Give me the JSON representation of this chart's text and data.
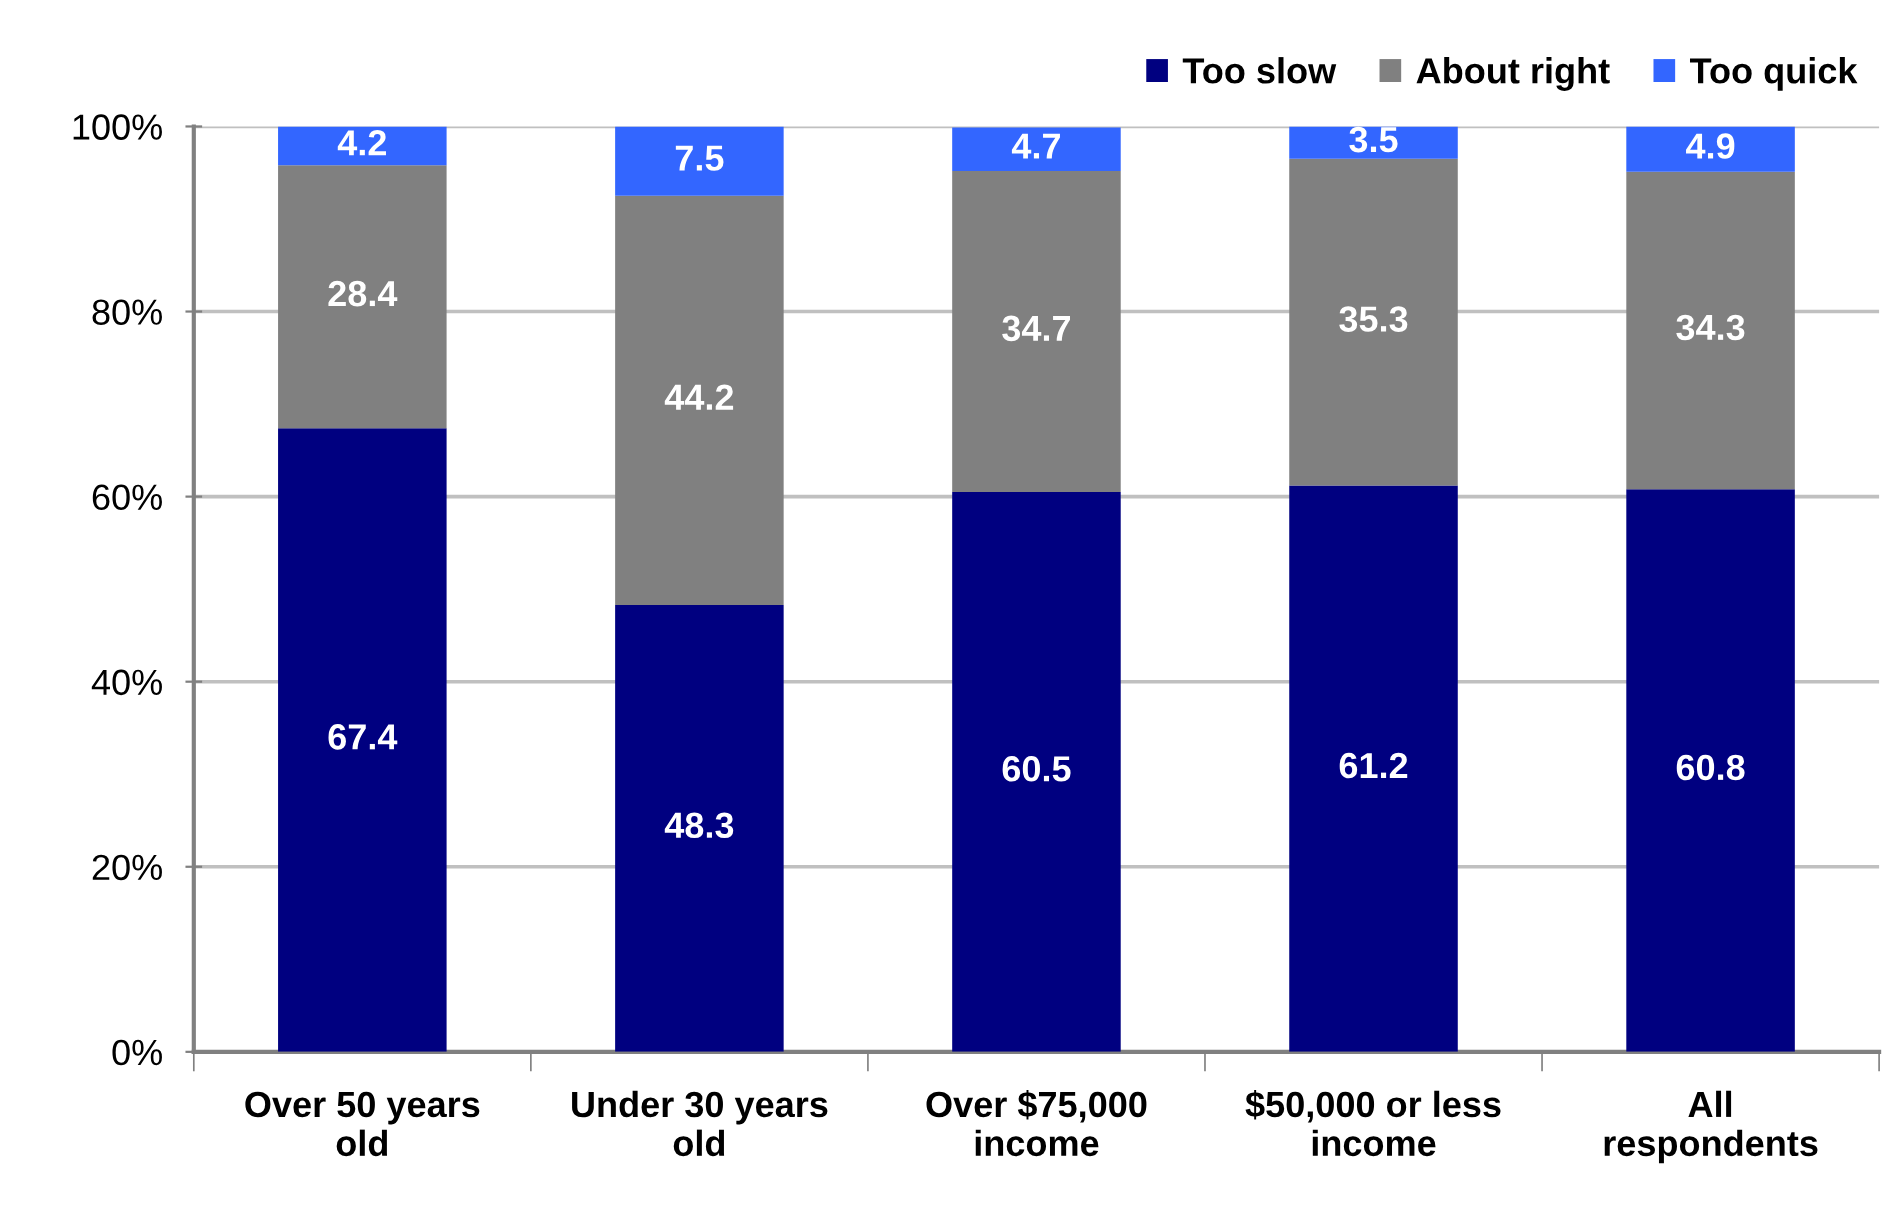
{
  "chart_data": {
    "type": "bar",
    "stacked": true,
    "categories": [
      "Over 50 years\nold",
      "Under 30 years\nold",
      "Over $75,000\nincome",
      "$50,000 or less\nincome",
      "All\nrespondents"
    ],
    "series": [
      {
        "name": "Too slow",
        "color": "#000080",
        "values": [
          67.4,
          48.3,
          60.5,
          61.2,
          60.8
        ]
      },
      {
        "name": "About right",
        "color": "#808080",
        "values": [
          28.4,
          44.2,
          34.7,
          35.3,
          34.3
        ]
      },
      {
        "name": "Too quick",
        "color": "#3366ff",
        "values": [
          4.2,
          7.5,
          4.7,
          3.5,
          4.9
        ]
      }
    ],
    "ylim": [
      0,
      100
    ],
    "yticks": [
      {
        "value": 0,
        "label": "0%"
      },
      {
        "value": 20,
        "label": "20%"
      },
      {
        "value": 40,
        "label": "40%"
      },
      {
        "value": 60,
        "label": "60%"
      },
      {
        "value": 80,
        "label": "80%"
      },
      {
        "value": 100,
        "label": "100%"
      }
    ],
    "grid": "y",
    "legend": "top right",
    "data_labels": true
  }
}
